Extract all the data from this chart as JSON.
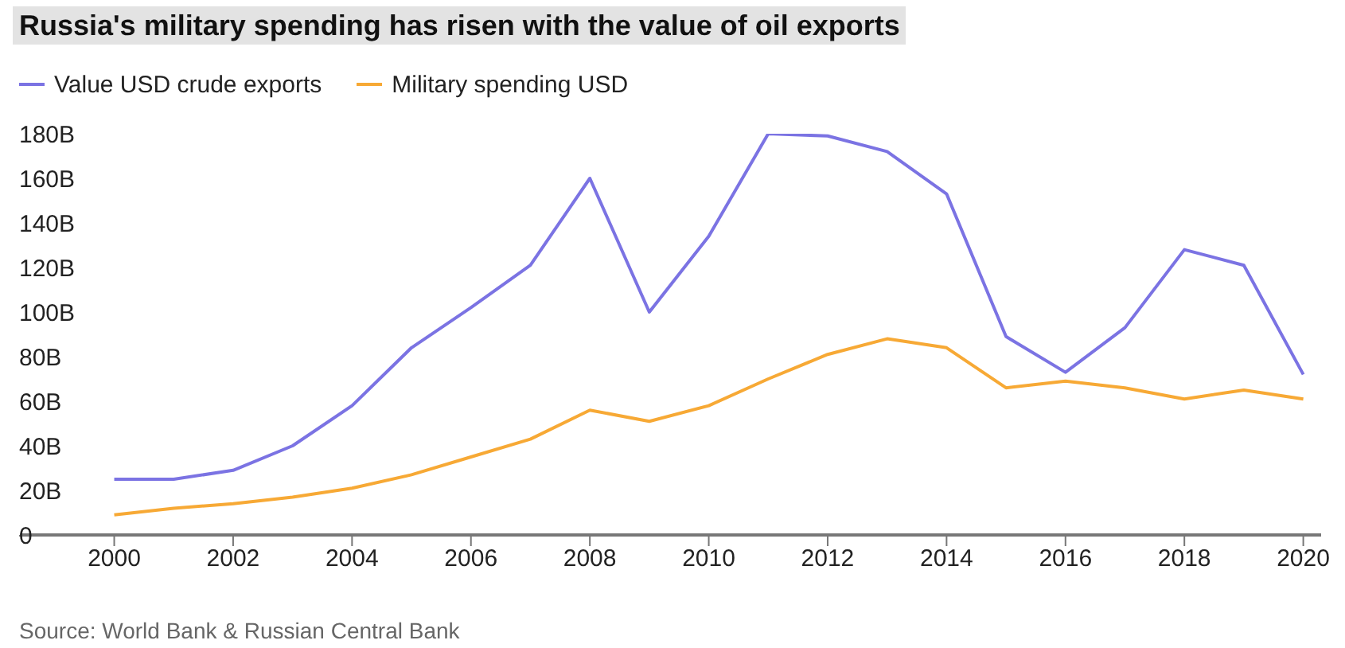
{
  "chart_data": {
    "type": "line",
    "title": "Russia's military spending has risen with the value of oil exports",
    "annotations": [
      "Source: World Bank & Russian Central Bank"
    ],
    "x": [
      2000,
      2001,
      2002,
      2003,
      2004,
      2005,
      2006,
      2007,
      2008,
      2009,
      2010,
      2011,
      2012,
      2013,
      2014,
      2015,
      2016,
      2017,
      2018,
      2019,
      2020
    ],
    "series": [
      {
        "name": "Value USD crude exports",
        "color": "#7b73e3",
        "values": [
          25,
          25,
          29,
          40,
          58,
          84,
          102,
          121,
          160,
          100,
          134,
          180,
          179,
          172,
          153,
          89,
          73,
          93,
          128,
          121,
          72
        ]
      },
      {
        "name": "Military spending USD",
        "color": "#f7a935",
        "values": [
          9,
          12,
          14,
          17,
          21,
          27,
          35,
          43,
          56,
          51,
          58,
          70,
          81,
          88,
          84,
          66,
          69,
          66,
          61,
          65,
          61
        ]
      }
    ],
    "xlim": [
      1998.4,
      2020.3
    ],
    "xticks": [
      2000,
      2002,
      2004,
      2006,
      2008,
      2010,
      2012,
      2014,
      2016,
      2018,
      2020
    ],
    "ylim": [
      0,
      180
    ],
    "yticks": [
      {
        "value": 0,
        "label": "0"
      },
      {
        "value": 20,
        "label": "20B"
      },
      {
        "value": 40,
        "label": "40B"
      },
      {
        "value": 60,
        "label": "60B"
      },
      {
        "value": 80,
        "label": "80B"
      },
      {
        "value": 100,
        "label": "100B"
      },
      {
        "value": 120,
        "label": "120B"
      },
      {
        "value": 140,
        "label": "140B"
      },
      {
        "value": 160,
        "label": "160B"
      },
      {
        "value": 180,
        "label": "180B"
      }
    ],
    "grid": false,
    "legend": "top left",
    "marker": "none",
    "line_style": "solid"
  }
}
